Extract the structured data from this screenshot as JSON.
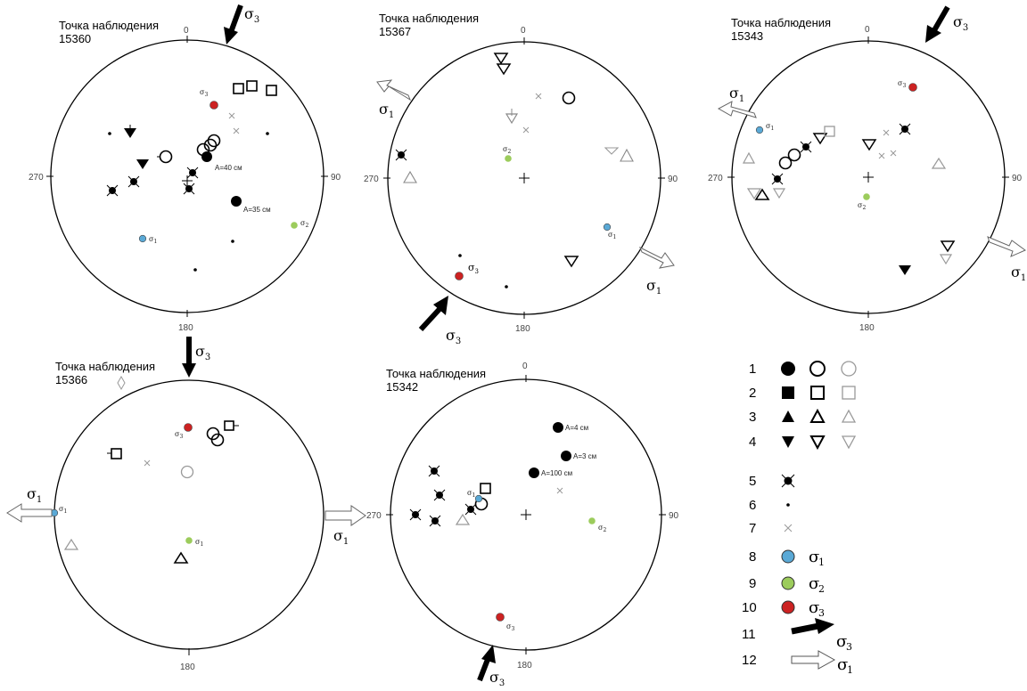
{
  "colors": {
    "sigma1": "#5aa9d6",
    "sigma2": "#9ccc5c",
    "sigma3": "#cc2222",
    "ink": "#000000",
    "open_dark": "#000000",
    "open_light": "#999999"
  },
  "degree_labels": {
    "n": "0",
    "e": "90",
    "s": "180",
    "w": "270"
  },
  "sigma_symbol": "σ",
  "stations": [
    {
      "id": "15360",
      "title_line1": "Точка наблюдения",
      "title_line2": "15360",
      "annotations": [
        "A=40 см",
        "A=35 см"
      ]
    },
    {
      "id": "15367",
      "title_line1": "Точка наблюдения",
      "title_line2": "15367",
      "annotations": []
    },
    {
      "id": "15343",
      "title_line1": "Точка наблюдения",
      "title_line2": "15343",
      "annotations": []
    },
    {
      "id": "15366",
      "title_line1": "Точка наблюдения",
      "title_line2": "15366",
      "annotations": []
    },
    {
      "id": "15342",
      "title_line1": "Точка наблюдения",
      "title_line2": "15342",
      "annotations": [
        "A=4 см",
        "A=3 см",
        "A=100 см"
      ]
    }
  ],
  "legend": [
    {
      "num": "1",
      "symbol": "circle",
      "variants": [
        "filled",
        "open-dark",
        "open-light"
      ]
    },
    {
      "num": "2",
      "symbol": "square",
      "variants": [
        "filled",
        "open-dark",
        "open-light"
      ]
    },
    {
      "num": "3",
      "symbol": "triangle-up",
      "variants": [
        "filled",
        "open-dark",
        "open-light"
      ]
    },
    {
      "num": "4",
      "symbol": "triangle-down",
      "variants": [
        "filled",
        "open-dark",
        "open-light"
      ]
    },
    {
      "num": "5",
      "symbol": "crossed-star"
    },
    {
      "num": "6",
      "symbol": "dot"
    },
    {
      "num": "7",
      "symbol": "cross"
    },
    {
      "num": "8",
      "symbol": "sigma1-circle",
      "sub": "1"
    },
    {
      "num": "9",
      "symbol": "sigma2-circle",
      "sub": "2"
    },
    {
      "num": "10",
      "symbol": "sigma3-circle",
      "sub": "3"
    },
    {
      "num": "11",
      "symbol": "black-arrow",
      "sub": "3"
    },
    {
      "num": "12",
      "symbol": "white-arrow",
      "sub": "1"
    }
  ]
}
